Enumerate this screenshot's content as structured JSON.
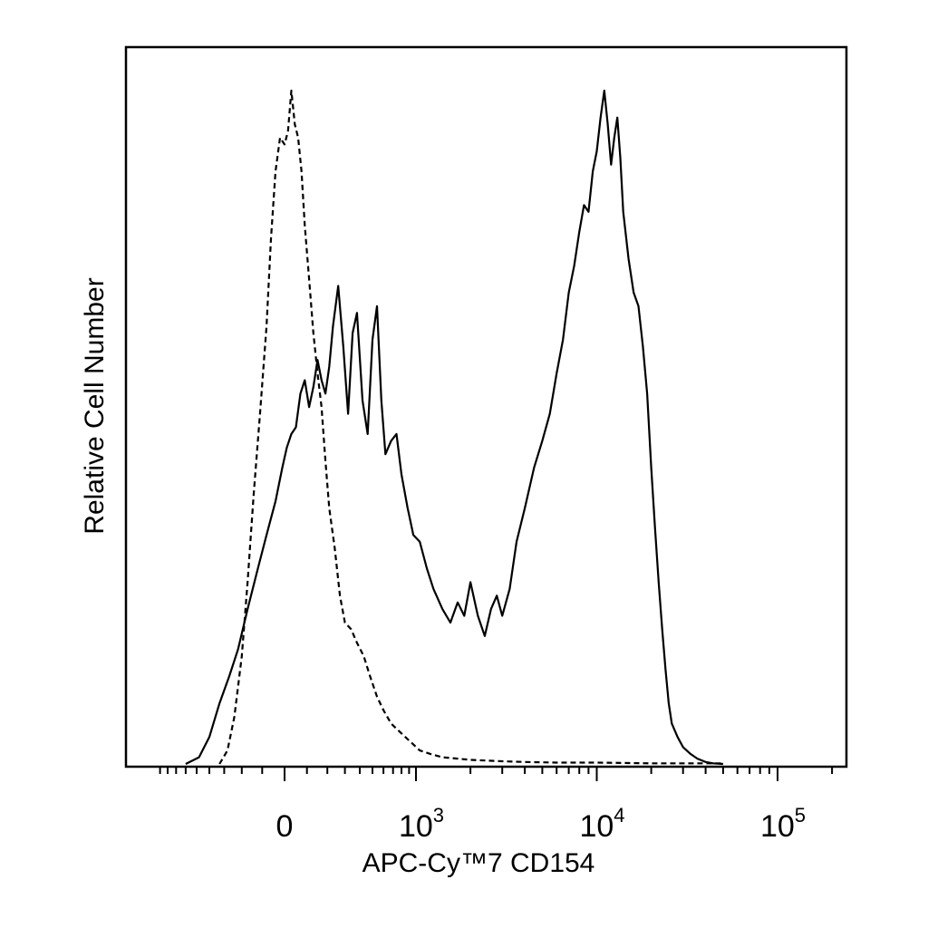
{
  "chart_data": {
    "type": "area",
    "title": "",
    "xlabel": "APC-Cy™7 CD154",
    "ylabel": "Relative Cell Number",
    "x_scale": "biexponential",
    "x_range": [
      -500,
      200000
    ],
    "y_range": [
      0,
      1.0
    ],
    "grid": false,
    "legend": "none",
    "x_ticks": [
      {
        "value": 0,
        "label": "0",
        "exp": ""
      },
      {
        "value": 1000,
        "label": "10",
        "exp": "3"
      },
      {
        "value": 10000,
        "label": "10",
        "exp": "4"
      },
      {
        "value": 100000,
        "label": "10",
        "exp": "5"
      }
    ],
    "series": [
      {
        "style": "solid",
        "x": [
          -600,
          -480,
          -400,
          -330,
          -270,
          -220,
          -170,
          -120,
          -80,
          -40,
          -10,
          10,
          30,
          50,
          70,
          90,
          110,
          130,
          150,
          170,
          190,
          210,
          230,
          260,
          290,
          320,
          350,
          380,
          420,
          460,
          500,
          540,
          580,
          620,
          680,
          740,
          800,
          880,
          960,
          1050,
          1150,
          1250,
          1400,
          1550,
          1700,
          1850,
          2000,
          2200,
          2400,
          2600,
          2800,
          3000,
          3300,
          3600,
          4000,
          4500,
          5000,
          5500,
          6000,
          6500,
          7000,
          7500,
          8000,
          8500,
          9000,
          9500,
          10000,
          10500,
          11000,
          11500,
          12000,
          12500,
          13000,
          13500,
          14000,
          15000,
          16000,
          17000,
          18000,
          19000,
          20000,
          21000,
          22000,
          23000,
          24000,
          25000,
          26000,
          28000,
          30000,
          33000,
          36000,
          40000,
          44000,
          50000
        ],
        "y": [
          0.0,
          0.01,
          0.04,
          0.09,
          0.13,
          0.17,
          0.23,
          0.29,
          0.34,
          0.39,
          0.44,
          0.47,
          0.49,
          0.5,
          0.55,
          0.57,
          0.53,
          0.56,
          0.6,
          0.57,
          0.55,
          0.59,
          0.65,
          0.71,
          0.62,
          0.52,
          0.64,
          0.67,
          0.54,
          0.49,
          0.63,
          0.68,
          0.54,
          0.46,
          0.48,
          0.49,
          0.43,
          0.38,
          0.34,
          0.33,
          0.29,
          0.26,
          0.23,
          0.21,
          0.24,
          0.22,
          0.27,
          0.22,
          0.19,
          0.23,
          0.25,
          0.22,
          0.26,
          0.33,
          0.38,
          0.44,
          0.48,
          0.52,
          0.58,
          0.63,
          0.7,
          0.74,
          0.79,
          0.83,
          0.82,
          0.88,
          0.91,
          0.96,
          1.0,
          0.95,
          0.89,
          0.93,
          0.96,
          0.9,
          0.82,
          0.75,
          0.7,
          0.68,
          0.62,
          0.55,
          0.44,
          0.35,
          0.27,
          0.2,
          0.14,
          0.09,
          0.06,
          0.04,
          0.025,
          0.015,
          0.008,
          0.003,
          0.001,
          0.0
        ]
      },
      {
        "style": "dashed",
        "x": [
          -330,
          -280,
          -240,
          -200,
          -170,
          -140,
          -110,
          -80,
          -60,
          -40,
          -20,
          0,
          15,
          30,
          45,
          60,
          75,
          90,
          110,
          130,
          150,
          170,
          190,
          210,
          240,
          270,
          300,
          340,
          380,
          430,
          480,
          540,
          600,
          680,
          760,
          850,
          950,
          1050,
          1200,
          1400,
          1700,
          2000,
          2500,
          3000,
          4000,
          6000,
          10000,
          20000,
          50000
        ],
        "y": [
          0.0,
          0.02,
          0.07,
          0.16,
          0.27,
          0.4,
          0.52,
          0.65,
          0.78,
          0.88,
          0.93,
          0.92,
          0.94,
          1.0,
          0.95,
          0.93,
          0.88,
          0.8,
          0.72,
          0.64,
          0.58,
          0.53,
          0.45,
          0.38,
          0.32,
          0.25,
          0.21,
          0.2,
          0.18,
          0.16,
          0.13,
          0.1,
          0.08,
          0.06,
          0.05,
          0.04,
          0.03,
          0.02,
          0.015,
          0.01,
          0.008,
          0.006,
          0.005,
          0.004,
          0.003,
          0.002,
          0.002,
          0.001,
          0.001
        ]
      }
    ]
  }
}
